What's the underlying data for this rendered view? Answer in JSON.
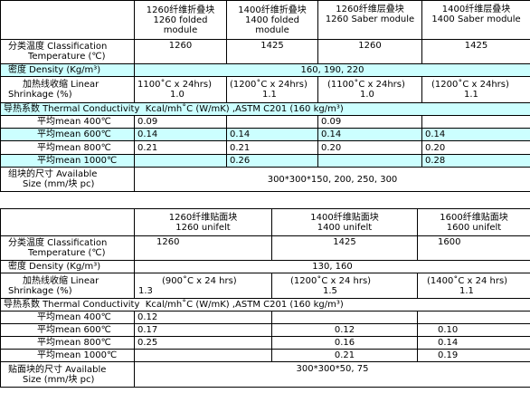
{
  "table1": {
    "headers": [
      "1260纤维折叠块 1260 folded module",
      "1400纤维折叠块 1400 folded module",
      "1260纤维层叠块 1260 Saber module",
      "1400纤维层叠块 1400 Saber module"
    ],
    "header_lines": [
      [
        "1260纤维折叠块",
        "1260 folded",
        "module"
      ],
      [
        "1400纤维折叠块",
        "1400 folded",
        "module"
      ],
      [
        "1260纤维层叠块",
        "1260 Saber module",
        ""
      ],
      [
        "1400纤维层叠块",
        "1400 Saber module",
        ""
      ]
    ],
    "rows": {
      "class_temp": {
        "label1": "分类温度 Classification",
        "label2": "Temperature (℃)",
        "values": [
          "1260",
          "1425",
          "1260",
          "1425"
        ]
      },
      "density": {
        "label": "密度 Density (Kg/m³)",
        "value": "160, 190, 220"
      },
      "shrinkage": {
        "label1": "加热线收缩 Linear",
        "label2": "Shrinkage (%)",
        "values": [
          [
            "1100˚C x 24hrs)",
            "1.0"
          ],
          [
            "(1200˚C x 24hrs)",
            "1.1"
          ],
          [
            "(1100˚C x 24hrs)",
            "1.0"
          ],
          [
            "(1200˚C x 24hrs)",
            "1.1"
          ]
        ]
      },
      "conductivity": {
        "label": "导热系数 Thermal Conductivity",
        "unit": "Kcal/mh˚C (W/mK) ,ASTM C201  (160 kg/m³)"
      },
      "m400": {
        "label": "平均mean 400℃",
        "values": [
          "0.09",
          "",
          "0.09",
          ""
        ]
      },
      "m600": {
        "label": "平均mean 600℃",
        "values": [
          "0.14",
          "0.14",
          "0.14",
          "0.14"
        ]
      },
      "m800": {
        "label": "平均mean 800℃",
        "values": [
          "0.21",
          "0.21",
          "0.20",
          "0.20"
        ]
      },
      "m1000": {
        "label": "平均mean 1000℃",
        "values": [
          "",
          "0.26",
          "",
          "0.28"
        ]
      },
      "size": {
        "label1": "组块的尺寸 Available",
        "label2": "Size  (mm/块 pc)",
        "value": "300*300*150, 200, 250, 300"
      }
    }
  },
  "table2": {
    "header_lines": [
      [
        "1260纤维贴面块",
        "1260 unifelt"
      ],
      [
        "1400纤维贴面块",
        "1400 unifelt"
      ],
      [
        "1600纤维贴面块",
        "1600 unifelt"
      ]
    ],
    "rows": {
      "class_temp": {
        "label1": "分类温度 Classification",
        "label2": "Temperature (℃)",
        "values": [
          "1260",
          "1425",
          "1600"
        ]
      },
      "density": {
        "label": "密度 Density (Kg/m³)",
        "value": "130, 160"
      },
      "shrinkage": {
        "label1": "加热线收缩 Linear",
        "label2": "Shrinkage (%)",
        "values": [
          [
            "(900˚C x 24 hrs)",
            "1.3"
          ],
          [
            "(1200˚C x 24 hrs)",
            "1.5"
          ],
          [
            "(1400˚C x 24 hrs)",
            "1.1"
          ]
        ]
      },
      "conductivity": {
        "label": "导热系数 Thermal Conductivity",
        "unit": "Kcal/mh˚C (W/mK) ,ASTM C201  (160 kg/m³)"
      },
      "m400": {
        "label": "平均mean 400℃",
        "values": [
          "0.12",
          "",
          ""
        ]
      },
      "m600": {
        "label": "平均mean 600℃",
        "values": [
          "0.17",
          "0.12",
          "0.10"
        ]
      },
      "m800": {
        "label": "平均mean 800℃",
        "values": [
          "0.25",
          "0.16",
          "0.14"
        ]
      },
      "m1000": {
        "label": "平均mean 1000℃",
        "values": [
          "",
          "0.21",
          "0.19"
        ]
      },
      "size": {
        "label1": "贴面块的尺寸 Available",
        "label2": "Size  (mm/块 pc)",
        "value": "300*300*50, 75"
      }
    }
  },
  "colors": {
    "cyan_row": "#ccffff",
    "border": "#000000"
  }
}
